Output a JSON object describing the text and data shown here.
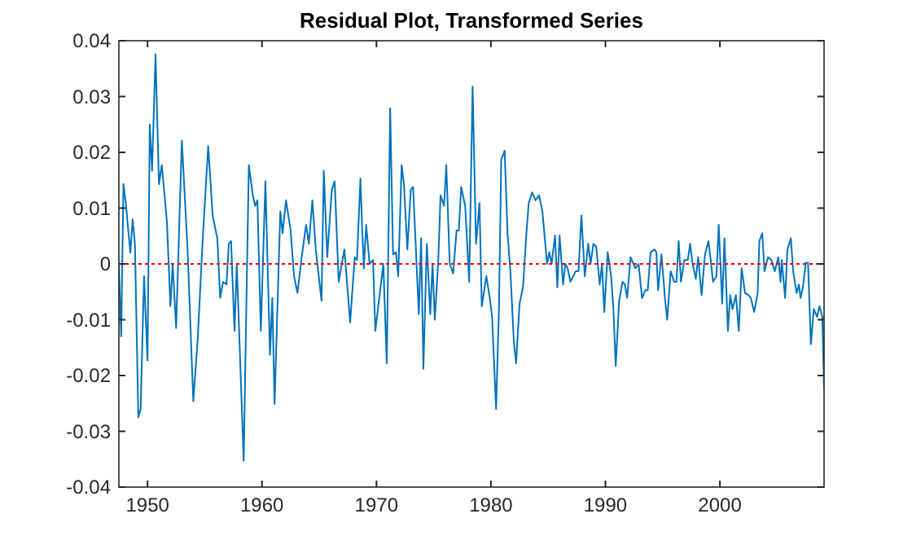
{
  "chart_data": {
    "type": "line",
    "title": "Residual Plot, Transformed Series",
    "x": [
      1947.5,
      1947.7,
      1947.9,
      1948.1,
      1948.5,
      1948.7,
      1948.9,
      1949.2,
      1949.4,
      1949.7,
      1950.0,
      1950.2,
      1950.4,
      1950.7,
      1951.0,
      1951.25,
      1951.7,
      1952.0,
      1952.2,
      1952.5,
      1953.0,
      1953.5,
      1954.0,
      1954.4,
      1954.8,
      1955.3,
      1955.7,
      1956.1,
      1956.35,
      1956.6,
      1956.9,
      1957.1,
      1957.3,
      1957.6,
      1957.8,
      1958.4,
      1958.85,
      1959.2,
      1959.4,
      1959.6,
      1959.9,
      1960.3,
      1960.7,
      1960.9,
      1961.1,
      1961.6,
      1961.8,
      1962.1,
      1962.5,
      1962.8,
      1963.1,
      1963.5,
      1963.85,
      1964.1,
      1964.4,
      1964.7,
      1965.2,
      1965.4,
      1965.7,
      1966.1,
      1966.35,
      1966.7,
      1967.2,
      1967.7,
      1968.1,
      1968.3,
      1968.6,
      1968.75,
      1968.9,
      1969.1,
      1969.4,
      1969.7,
      1969.9,
      1970.3,
      1970.6,
      1970.9,
      1971.2,
      1971.45,
      1971.7,
      1971.9,
      1972.2,
      1972.4,
      1972.7,
      1973.0,
      1973.2,
      1973.7,
      1973.9,
      1974.1,
      1974.4,
      1974.7,
      1974.9,
      1975.1,
      1975.4,
      1975.6,
      1975.9,
      1976.1,
      1976.4,
      1976.7,
      1977.0,
      1977.2,
      1977.4,
      1977.75,
      1978.1,
      1978.4,
      1978.7,
      1979.0,
      1979.2,
      1979.6,
      1979.9,
      1980.1,
      1980.45,
      1980.7,
      1980.9,
      1981.2,
      1981.45,
      1981.7,
      1982.0,
      1982.2,
      1982.5,
      1982.8,
      1983.1,
      1983.3,
      1983.6,
      1983.9,
      1984.2,
      1984.5,
      1984.9,
      1985.1,
      1985.3,
      1985.6,
      1985.8,
      1986.0,
      1986.3,
      1986.5,
      1986.7,
      1986.95,
      1987.4,
      1987.65,
      1987.9,
      1988.2,
      1988.5,
      1988.7,
      1988.95,
      1989.2,
      1989.5,
      1989.7,
      1989.9,
      1990.2,
      1990.5,
      1990.7,
      1990.9,
      1991.2,
      1991.5,
      1991.7,
      1991.9,
      1992.2,
      1992.45,
      1992.6,
      1992.9,
      1993.2,
      1993.5,
      1993.7,
      1993.95,
      1994.3,
      1994.45,
      1994.6,
      1994.9,
      1995.2,
      1995.4,
      1995.7,
      1996.0,
      1996.2,
      1996.4,
      1996.6,
      1996.9,
      1997.2,
      1997.4,
      1997.6,
      1997.9,
      1998.1,
      1998.4,
      1998.7,
      1999.0,
      1999.2,
      1999.4,
      1999.7,
      1999.9,
      2000.2,
      2000.4,
      2000.7,
      2000.9,
      2001.1,
      2001.4,
      2001.65,
      2001.9,
      2002.2,
      2002.5,
      2002.7,
      2003.0,
      2003.3,
      2003.45,
      2003.7,
      2003.9,
      2004.2,
      2004.5,
      2004.8,
      2005.1,
      2005.3,
      2005.4,
      2005.7,
      2005.9,
      2006.2,
      2006.4,
      2006.7,
      2006.9,
      2007.05,
      2007.25,
      2007.5,
      2007.7,
      2007.95,
      2008.2,
      2008.5,
      2008.7,
      2008.95,
      2009.1
    ],
    "series": [
      {
        "color": "#0072bd",
        "values": [
          0.0,
          -0.013,
          0.0143,
          0.011,
          0.002,
          0.008,
          0.0036,
          -0.0275,
          -0.026,
          -0.0022,
          -0.0173,
          0.025,
          0.0167,
          0.0376,
          0.0143,
          0.0177,
          0.0075,
          -0.0076,
          0.0,
          -0.0115,
          0.0221,
          0.0026,
          -0.0246,
          -0.013,
          0.0036,
          0.0211,
          0.0085,
          0.0046,
          -0.0061,
          -0.0032,
          -0.0037,
          0.0036,
          0.0041,
          -0.012,
          0.0,
          -0.0353,
          0.0177,
          0.0123,
          0.0104,
          0.0114,
          -0.012,
          0.0148,
          -0.0163,
          -0.0061,
          -0.0251,
          0.0094,
          0.0055,
          0.0114,
          0.006,
          -0.0022,
          -0.0052,
          0.0017,
          0.007,
          0.0036,
          0.0114,
          0.0026,
          -0.0066,
          0.0167,
          0.0012,
          0.0133,
          0.0148,
          -0.0032,
          0.0026,
          -0.0105,
          0.0012,
          0.0007,
          0.0153,
          0.0065,
          -0.0008,
          0.007,
          0.0,
          0.0007,
          -0.012,
          -0.0052,
          0.0,
          -0.0178,
          0.0279,
          0.0017,
          0.0021,
          -0.0022,
          0.0177,
          0.0143,
          0.0026,
          0.0133,
          0.0138,
          -0.009,
          0.0046,
          -0.0188,
          0.0036,
          -0.009,
          0.0,
          -0.01,
          0.0007,
          0.0123,
          0.0104,
          0.0177,
          0.0,
          -0.0017,
          0.006,
          0.006,
          0.0138,
          0.0104,
          -0.0032,
          0.0318,
          0.0036,
          0.0109,
          -0.0076,
          -0.0022,
          -0.0061,
          -0.0095,
          -0.026,
          -0.0081,
          0.0187,
          0.0203,
          0.0055,
          -0.0013,
          -0.0139,
          -0.0178,
          -0.0071,
          -0.0042,
          0.0055,
          0.0109,
          0.0128,
          0.0114,
          0.0123,
          0.0094,
          0.0,
          0.0021,
          0.0,
          0.0051,
          -0.0042,
          0.0051,
          -0.0037,
          0.0,
          -0.0008,
          -0.0032,
          -0.0013,
          -0.0013,
          0.0087,
          -0.0022,
          0.0036,
          0.0,
          0.0036,
          0.0031,
          -0.0037,
          0.0,
          -0.0086,
          0.0021,
          -0.0022,
          -0.0081,
          -0.0183,
          -0.0066,
          -0.0032,
          -0.0037,
          -0.0061,
          0.0012,
          0.0,
          -0.0008,
          0.0,
          -0.0061,
          -0.0047,
          -0.0047,
          0.0021,
          0.0026,
          0.0021,
          -0.0047,
          0.0017,
          -0.0061,
          -0.01,
          -0.0013,
          -0.0032,
          -0.0032,
          0.0041,
          -0.0032,
          0.0007,
          0.0007,
          0.0036,
          0.0002,
          -0.0027,
          0.0012,
          -0.0056,
          0.0017,
          0.0041,
          0.0007,
          -0.0032,
          -0.0022,
          0.007,
          -0.0071,
          0.0046,
          -0.012,
          -0.0056,
          -0.0081,
          -0.0056,
          -0.012,
          -0.0008,
          -0.0052,
          -0.0056,
          -0.0061,
          -0.0086,
          -0.0052,
          0.0041,
          0.0055,
          -0.0013,
          0.0012,
          0.0007,
          -0.0013,
          0.0012,
          -0.0032,
          0.0007,
          -0.0061,
          0.0026,
          0.0046,
          -0.0013,
          -0.0052,
          -0.0037,
          -0.0061,
          -0.0042,
          0.0002,
          0.0002,
          -0.0144,
          -0.0081,
          -0.0095,
          -0.0076,
          -0.0095,
          -0.0222
        ]
      }
    ],
    "xlim": [
      1947.5,
      2009.1
    ],
    "xticks": [
      1950,
      1960,
      1970,
      1980,
      1990,
      2000
    ],
    "ylim": [
      -0.04,
      0.04
    ],
    "yticks": [
      -0.04,
      -0.03,
      -0.02,
      -0.01,
      0,
      0.01,
      0.02,
      0.03,
      0.04
    ],
    "ref_lines": [
      {
        "axis": "y",
        "value": 0,
        "color": "#ff0000",
        "line_style": "dotted"
      }
    ],
    "grid": false,
    "marker": "none",
    "line_style": "solid"
  }
}
